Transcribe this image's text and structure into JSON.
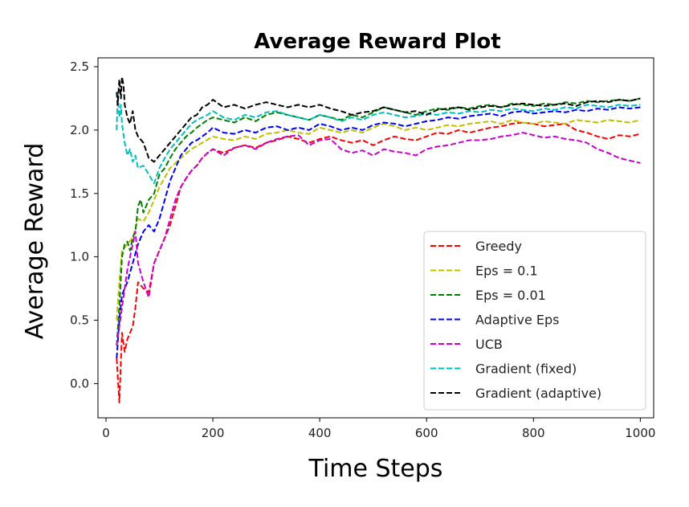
{
  "chart_data": {
    "type": "line",
    "title": "Average Reward Plot",
    "xlabel": "Time Steps",
    "ylabel": "Average Reward",
    "xlim": [
      -15,
      1025
    ],
    "ylim": [
      -0.27,
      2.57
    ],
    "xticks": [
      0,
      200,
      400,
      600,
      800,
      1000
    ],
    "xtick_labels": [
      "0",
      "200",
      "400",
      "600",
      "800",
      "1000"
    ],
    "yticks": [
      0.0,
      0.5,
      1.0,
      1.5,
      2.0,
      2.5
    ],
    "ytick_labels": [
      "0.0",
      "0.5",
      "1.0",
      "1.5",
      "2.0",
      "2.5"
    ],
    "grid": false,
    "legend_position": "lower-right",
    "series": [
      {
        "name": "Greedy",
        "color": "#ff0000",
        "x": [
          20,
          25,
          30,
          35,
          40,
          45,
          50,
          55,
          60,
          70,
          80,
          90,
          100,
          110,
          120,
          130,
          140,
          150,
          160,
          170,
          180,
          190,
          200,
          220,
          240,
          260,
          280,
          300,
          320,
          340,
          360,
          380,
          400,
          420,
          440,
          460,
          480,
          500,
          520,
          540,
          560,
          580,
          600,
          620,
          640,
          660,
          680,
          700,
          720,
          740,
          760,
          780,
          800,
          820,
          840,
          860,
          880,
          900,
          920,
          940,
          960,
          980,
          1000
        ],
        "y": [
          0.2,
          -0.15,
          0.4,
          0.25,
          0.35,
          0.4,
          0.45,
          0.6,
          0.8,
          0.75,
          0.72,
          0.95,
          1.05,
          1.15,
          1.25,
          1.4,
          1.55,
          1.62,
          1.68,
          1.72,
          1.78,
          1.82,
          1.85,
          1.82,
          1.86,
          1.88,
          1.86,
          1.9,
          1.92,
          1.95,
          1.93,
          1.9,
          1.93,
          1.95,
          1.92,
          1.9,
          1.92,
          1.88,
          1.92,
          1.95,
          1.93,
          1.92,
          1.95,
          1.98,
          1.97,
          2.0,
          1.98,
          2.0,
          2.02,
          2.03,
          2.05,
          2.06,
          2.05,
          2.03,
          2.04,
          2.05,
          2.0,
          1.98,
          1.95,
          1.93,
          1.96,
          1.95,
          1.97
        ]
      },
      {
        "name": "Eps = 0.1",
        "color": "#bfbf00",
        "x": [
          20,
          25,
          30,
          40,
          50,
          60,
          70,
          80,
          90,
          100,
          120,
          140,
          160,
          180,
          200,
          220,
          240,
          260,
          280,
          300,
          320,
          340,
          360,
          380,
          400,
          420,
          440,
          460,
          480,
          500,
          520,
          540,
          560,
          580,
          600,
          620,
          640,
          660,
          680,
          700,
          720,
          740,
          760,
          780,
          800,
          820,
          840,
          860,
          880,
          900,
          920,
          940,
          960,
          980,
          1000
        ],
        "y": [
          0.5,
          0.8,
          1.05,
          1.1,
          1.15,
          1.3,
          1.28,
          1.35,
          1.45,
          1.55,
          1.7,
          1.78,
          1.85,
          1.9,
          1.95,
          1.93,
          1.92,
          1.95,
          1.93,
          1.97,
          1.98,
          2.0,
          1.98,
          1.97,
          2.02,
          2.0,
          1.98,
          2.0,
          1.98,
          2.02,
          2.05,
          2.03,
          2.0,
          2.02,
          2.0,
          2.02,
          2.04,
          2.03,
          2.05,
          2.06,
          2.07,
          2.05,
          2.08,
          2.06,
          2.05,
          2.07,
          2.06,
          2.05,
          2.08,
          2.07,
          2.06,
          2.08,
          2.07,
          2.06,
          2.08
        ]
      },
      {
        "name": "Eps = 0.01",
        "color": "#008000",
        "x": [
          20,
          25,
          30,
          35,
          40,
          45,
          50,
          55,
          60,
          65,
          70,
          75,
          80,
          90,
          100,
          110,
          120,
          130,
          140,
          150,
          160,
          170,
          180,
          190,
          200,
          220,
          240,
          260,
          280,
          300,
          320,
          340,
          360,
          380,
          400,
          420,
          440,
          460,
          480,
          500,
          520,
          540,
          560,
          580,
          600,
          620,
          640,
          660,
          680,
          700,
          720,
          740,
          760,
          780,
          800,
          820,
          840,
          860,
          880,
          900,
          920,
          940,
          960,
          980,
          1000
        ],
        "y": [
          0.3,
          0.6,
          1.0,
          1.1,
          1.12,
          1.05,
          1.15,
          1.2,
          1.4,
          1.45,
          1.35,
          1.4,
          1.45,
          1.5,
          1.65,
          1.7,
          1.78,
          1.85,
          1.9,
          1.95,
          1.98,
          2.02,
          2.05,
          2.08,
          2.1,
          2.08,
          2.06,
          2.1,
          2.07,
          2.12,
          2.14,
          2.12,
          2.1,
          2.08,
          2.12,
          2.1,
          2.08,
          2.12,
          2.1,
          2.14,
          2.18,
          2.16,
          2.14,
          2.12,
          2.15,
          2.17,
          2.16,
          2.18,
          2.17,
          2.19,
          2.2,
          2.18,
          2.21,
          2.2,
          2.19,
          2.21,
          2.2,
          2.22,
          2.21,
          2.23,
          2.22,
          2.23,
          2.24,
          2.23,
          2.25
        ]
      },
      {
        "name": "Adaptive Eps",
        "color": "#0000ff",
        "x": [
          20,
          25,
          30,
          40,
          50,
          60,
          70,
          80,
          90,
          100,
          110,
          120,
          130,
          140,
          150,
          160,
          170,
          180,
          190,
          200,
          220,
          240,
          260,
          280,
          300,
          320,
          340,
          360,
          380,
          400,
          420,
          440,
          460,
          480,
          500,
          520,
          540,
          560,
          580,
          600,
          620,
          640,
          660,
          680,
          700,
          720,
          740,
          760,
          780,
          800,
          820,
          840,
          860,
          880,
          900,
          920,
          940,
          960,
          980,
          1000
        ],
        "y": [
          0.2,
          0.5,
          0.7,
          0.8,
          0.95,
          1.1,
          1.2,
          1.25,
          1.2,
          1.3,
          1.45,
          1.6,
          1.7,
          1.8,
          1.85,
          1.9,
          1.92,
          1.95,
          1.98,
          2.02,
          1.98,
          1.97,
          2.0,
          1.98,
          2.02,
          2.03,
          2.0,
          2.02,
          2.0,
          2.05,
          2.03,
          2.0,
          2.02,
          2.0,
          2.04,
          2.06,
          2.05,
          2.03,
          2.05,
          2.07,
          2.08,
          2.1,
          2.09,
          2.11,
          2.12,
          2.13,
          2.11,
          2.14,
          2.15,
          2.13,
          2.14,
          2.15,
          2.14,
          2.16,
          2.15,
          2.17,
          2.16,
          2.18,
          2.17,
          2.18
        ]
      },
      {
        "name": "UCB",
        "color": "#cc00cc",
        "x": [
          20,
          25,
          30,
          40,
          50,
          55,
          60,
          70,
          80,
          90,
          100,
          110,
          120,
          130,
          140,
          150,
          160,
          170,
          180,
          190,
          200,
          220,
          240,
          260,
          280,
          300,
          320,
          340,
          360,
          380,
          400,
          420,
          440,
          460,
          480,
          500,
          520,
          540,
          560,
          580,
          600,
          620,
          640,
          660,
          680,
          700,
          720,
          740,
          760,
          780,
          800,
          820,
          840,
          860,
          880,
          900,
          920,
          940,
          960,
          980,
          1000
        ],
        "y": [
          0.3,
          0.45,
          0.6,
          0.9,
          1.1,
          1.2,
          0.95,
          0.8,
          0.68,
          0.95,
          1.05,
          1.15,
          1.3,
          1.45,
          1.55,
          1.62,
          1.68,
          1.72,
          1.78,
          1.82,
          1.85,
          1.8,
          1.86,
          1.88,
          1.85,
          1.9,
          1.93,
          1.95,
          1.96,
          1.88,
          1.92,
          1.93,
          1.85,
          1.82,
          1.84,
          1.8,
          1.85,
          1.83,
          1.82,
          1.8,
          1.85,
          1.87,
          1.88,
          1.9,
          1.92,
          1.92,
          1.93,
          1.95,
          1.96,
          1.98,
          1.96,
          1.94,
          1.95,
          1.93,
          1.92,
          1.9,
          1.85,
          1.82,
          1.78,
          1.76,
          1.74
        ]
      },
      {
        "name": "Gradient (fixed)",
        "color": "#00bfbf",
        "x": [
          20,
          22,
          25,
          28,
          30,
          35,
          40,
          45,
          50,
          55,
          60,
          70,
          80,
          90,
          100,
          110,
          120,
          130,
          140,
          150,
          160,
          170,
          180,
          190,
          200,
          220,
          240,
          260,
          280,
          300,
          320,
          340,
          360,
          380,
          400,
          420,
          440,
          460,
          480,
          500,
          520,
          540,
          560,
          580,
          600,
          620,
          640,
          660,
          680,
          700,
          720,
          740,
          760,
          780,
          800,
          820,
          840,
          860,
          880,
          900,
          920,
          940,
          960,
          980,
          1000
        ],
        "y": [
          2.0,
          2.3,
          2.1,
          2.2,
          2.05,
          1.9,
          1.8,
          1.85,
          1.75,
          1.8,
          1.7,
          1.72,
          1.65,
          1.58,
          1.7,
          1.78,
          1.85,
          1.9,
          1.95,
          2.0,
          2.05,
          2.08,
          2.1,
          2.12,
          2.15,
          2.1,
          2.08,
          2.12,
          2.1,
          2.14,
          2.15,
          2.12,
          2.1,
          2.08,
          2.12,
          2.1,
          2.07,
          2.1,
          2.08,
          2.12,
          2.14,
          2.12,
          2.1,
          2.11,
          2.13,
          2.12,
          2.14,
          2.13,
          2.15,
          2.14,
          2.16,
          2.15,
          2.17,
          2.16,
          2.15,
          2.17,
          2.16,
          2.18,
          2.17,
          2.2,
          2.19,
          2.18,
          2.2,
          2.19,
          2.2
        ]
      },
      {
        "name": "Gradient (adaptive)",
        "color": "#000000",
        "x": [
          20,
          22,
          25,
          28,
          30,
          33,
          35,
          40,
          45,
          50,
          55,
          60,
          70,
          80,
          90,
          100,
          110,
          120,
          130,
          140,
          150,
          160,
          170,
          180,
          190,
          200,
          220,
          240,
          260,
          280,
          300,
          320,
          340,
          360,
          380,
          400,
          420,
          440,
          460,
          480,
          500,
          520,
          540,
          560,
          580,
          600,
          620,
          640,
          660,
          680,
          700,
          720,
          740,
          760,
          780,
          800,
          820,
          840,
          860,
          880,
          900,
          920,
          940,
          960,
          980,
          1000
        ],
        "y": [
          2.3,
          2.2,
          2.4,
          2.25,
          2.42,
          2.35,
          2.2,
          2.1,
          2.05,
          2.15,
          2.0,
          1.95,
          1.9,
          1.78,
          1.75,
          1.8,
          1.85,
          1.9,
          1.95,
          2.0,
          2.05,
          2.1,
          2.12,
          2.18,
          2.2,
          2.24,
          2.18,
          2.2,
          2.17,
          2.2,
          2.22,
          2.2,
          2.18,
          2.2,
          2.18,
          2.2,
          2.17,
          2.15,
          2.12,
          2.14,
          2.15,
          2.18,
          2.16,
          2.14,
          2.15,
          2.12,
          2.16,
          2.17,
          2.18,
          2.16,
          2.18,
          2.19,
          2.18,
          2.2,
          2.21,
          2.2,
          2.19,
          2.2,
          2.21,
          2.19,
          2.22,
          2.23,
          2.22,
          2.24,
          2.23,
          2.25
        ]
      }
    ]
  }
}
